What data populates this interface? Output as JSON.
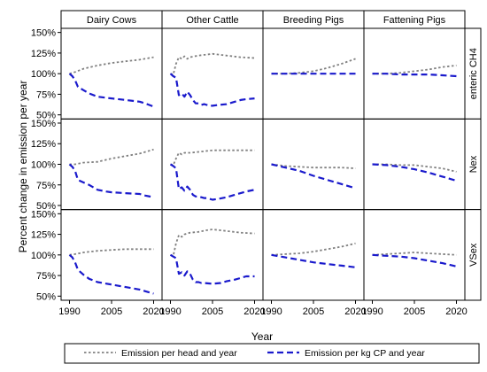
{
  "chart_data": {
    "type": "line",
    "title": "",
    "xlabel": "Year",
    "ylabel": "Percent change in emission per year",
    "column_facets": [
      "Dairy Cows",
      "Other Cattle",
      "Breeding Pigs",
      "Fattening Pigs"
    ],
    "row_facets": [
      "enteric CH4",
      "Nex",
      "VSex"
    ],
    "xlim": [
      1987,
      2023
    ],
    "ylim": [
      45,
      155
    ],
    "x_ticks": [
      1990,
      2005,
      2020
    ],
    "x_tick_labels": [
      "1990",
      "2005",
      "2020"
    ],
    "y_ticks": [
      50,
      75,
      100,
      125,
      150
    ],
    "y_tick_labels": [
      "50%",
      "75%",
      "100%",
      "125%",
      "150%"
    ],
    "legend_position": "bottom",
    "series_styles": [
      {
        "name": "Emission per head and year",
        "color": "#808080",
        "dash": "dotted"
      },
      {
        "name": "Emission per kg CP and year",
        "color": "#1a1acc",
        "dash": "dashed"
      }
    ],
    "panels": [
      {
        "column": "Dairy Cows",
        "row": "enteric CH4",
        "series": [
          {
            "name": "Emission per head and year",
            "x": [
              1990,
              1992,
              1995,
              2000,
              2005,
              2010,
              2015,
              2020
            ],
            "y": [
              100,
              102,
              106,
              110,
              113,
              115,
              117,
              120
            ]
          },
          {
            "name": "Emission per kg CP and year",
            "x": [
              1990,
              1991,
              1992,
              1993,
              1995,
              1997,
              2000,
              2005,
              2010,
              2015,
              2017,
              2020
            ],
            "y": [
              100,
              97,
              92,
              84,
              80,
              76,
              72,
              70,
              68,
              66,
              64,
              60
            ]
          }
        ]
      },
      {
        "column": "Other Cattle",
        "row": "enteric CH4",
        "series": [
          {
            "name": "Emission per head and year",
            "x": [
              1990,
              1991,
              1992,
              1993,
              1994,
              1995,
              1996,
              1997,
              2000,
              2005,
              2010,
              2015,
              2020
            ],
            "y": [
              100,
              99,
              112,
              120,
              118,
              121,
              118,
              120,
              122,
              124,
              122,
              120,
              119
            ]
          },
          {
            "name": "Emission per kg CP and year",
            "x": [
              1990,
              1991,
              1992,
              1993,
              1994,
              1995,
              1996,
              1997,
              1998,
              1999,
              2000,
              2001,
              2002,
              2003,
              2004,
              2005,
              2007,
              2010,
              2013,
              2015,
              2017,
              2020
            ],
            "y": [
              100,
              97,
              95,
              74,
              76,
              72,
              78,
              74,
              68,
              64,
              64,
              62,
              63,
              62,
              61,
              61,
              62,
              63,
              66,
              68,
              69,
              70
            ]
          }
        ]
      },
      {
        "column": "Breeding Pigs",
        "row": "enteric CH4",
        "series": [
          {
            "name": "Emission per head and year",
            "x": [
              1990,
              1995,
              2000,
              2005,
              2010,
              2015,
              2020
            ],
            "y": [
              100,
              100,
              101,
              103,
              107,
              112,
              118
            ]
          },
          {
            "name": "Emission per kg CP and year",
            "x": [
              1990,
              1995,
              2000,
              2005,
              2010,
              2015,
              2020
            ],
            "y": [
              100,
              100,
              100,
              100,
              100,
              100,
              100
            ]
          }
        ]
      },
      {
        "column": "Fattening Pigs",
        "row": "enteric CH4",
        "series": [
          {
            "name": "Emission per head and year",
            "x": [
              1990,
              1995,
              2000,
              2005,
              2010,
              2015,
              2020
            ],
            "y": [
              100,
              100,
              101,
              103,
              105,
              108,
              110
            ]
          },
          {
            "name": "Emission per kg CP and year",
            "x": [
              1990,
              1995,
              2000,
              2005,
              2010,
              2015,
              2020
            ],
            "y": [
              100,
              100,
              99,
              99,
              99,
              98,
              97
            ]
          }
        ]
      },
      {
        "column": "Dairy Cows",
        "row": "Nex",
        "series": [
          {
            "name": "Emission per head and year",
            "x": [
              1990,
              1992,
              1995,
              2000,
              2005,
              2010,
              2015,
              2020
            ],
            "y": [
              100,
              100,
              102,
              103,
              107,
              110,
              113,
              118
            ]
          },
          {
            "name": "Emission per kg CP and year",
            "x": [
              1990,
              1991,
              1992,
              1993,
              1995,
              1997,
              2000,
              2003,
              2005,
              2010,
              2015,
              2017,
              2020
            ],
            "y": [
              100,
              97,
              92,
              81,
              78,
              75,
              69,
              67,
              66,
              65,
              64,
              62,
              60
            ]
          }
        ]
      },
      {
        "column": "Other Cattle",
        "row": "Nex",
        "series": [
          {
            "name": "Emission per head and year",
            "x": [
              1990,
              1991,
              1992,
              1993,
              1994,
              1995,
              1997,
              2000,
              2005,
              2010,
              2015,
              2020
            ],
            "y": [
              100,
              99,
              107,
              114,
              112,
              114,
              114,
              115,
              117,
              117,
              117,
              117
            ]
          },
          {
            "name": "Emission per kg CP and year",
            "x": [
              1990,
              1991,
              1992,
              1993,
              1994,
              1995,
              1996,
              1997,
              1998,
              1999,
              2000,
              2001,
              2002,
              2003,
              2005,
              2007,
              2010,
              2013,
              2015,
              2017,
              2020
            ],
            "y": [
              100,
              98,
              95,
              70,
              72,
              68,
              73,
              69,
              63,
              61,
              61,
              60,
              59,
              59,
              57,
              58,
              60,
              63,
              65,
              67,
              69
            ]
          }
        ]
      },
      {
        "column": "Breeding Pigs",
        "row": "Nex",
        "series": [
          {
            "name": "Emission per head and year",
            "x": [
              1990,
              1995,
              2000,
              2005,
              2010,
              2015,
              2020
            ],
            "y": [
              100,
              98,
              97,
              96,
              96,
              96,
              95
            ]
          },
          {
            "name": "Emission per kg CP and year",
            "x": [
              1990,
              1995,
              2000,
              2005,
              2010,
              2015,
              2020
            ],
            "y": [
              100,
              96,
              92,
              86,
              81,
              76,
              71
            ]
          }
        ]
      },
      {
        "column": "Fattening Pigs",
        "row": "Nex",
        "series": [
          {
            "name": "Emission per head and year",
            "x": [
              1990,
              1995,
              2000,
              2005,
              2010,
              2015,
              2020
            ],
            "y": [
              100,
              100,
              99,
              99,
              97,
              95,
              91
            ]
          },
          {
            "name": "Emission per kg CP and year",
            "x": [
              1990,
              1995,
              2000,
              2005,
              2010,
              2015,
              2020
            ],
            "y": [
              100,
              99,
              97,
              94,
              90,
              85,
              80
            ]
          }
        ]
      },
      {
        "column": "Dairy Cows",
        "row": "VSex",
        "series": [
          {
            "name": "Emission per head and year",
            "x": [
              1990,
              1992,
              1995,
              2000,
              2005,
              2010,
              2015,
              2020
            ],
            "y": [
              100,
              101,
              103,
              105,
              106,
              107,
              107,
              107
            ]
          },
          {
            "name": "Emission per kg CP and year",
            "x": [
              1990,
              1991,
              1992,
              1993,
              1995,
              1997,
              2000,
              2005,
              2010,
              2015,
              2017,
              2020
            ],
            "y": [
              100,
              97,
              91,
              82,
              76,
              71,
              67,
              64,
              61,
              58,
              56,
              53
            ]
          }
        ]
      },
      {
        "column": "Other Cattle",
        "row": "VSex",
        "series": [
          {
            "name": "Emission per head and year",
            "x": [
              1990,
              1991,
              1992,
              1993,
              1994,
              1995,
              1997,
              2000,
              2003,
              2005,
              2010,
              2015,
              2020
            ],
            "y": [
              100,
              99,
              114,
              124,
              122,
              125,
              127,
              128,
              130,
              131,
              129,
              127,
              126
            ]
          },
          {
            "name": "Emission per kg CP and year",
            "x": [
              1990,
              1991,
              1992,
              1993,
              1994,
              1995,
              1996,
              1997,
              1998,
              1999,
              2000,
              2001,
              2002,
              2005,
              2008,
              2010,
              2013,
              2015,
              2017,
              2020
            ],
            "y": [
              100,
              98,
              96,
              77,
              79,
              75,
              80,
              77,
              70,
              67,
              67,
              66,
              66,
              65,
              66,
              68,
              70,
              72,
              74,
              74
            ]
          }
        ]
      },
      {
        "column": "Breeding Pigs",
        "row": "VSex",
        "series": [
          {
            "name": "Emission per head and year",
            "x": [
              1990,
              1995,
              2000,
              2005,
              2010,
              2015,
              2020
            ],
            "y": [
              100,
              101,
              102,
              104,
              107,
              110,
              114
            ]
          },
          {
            "name": "Emission per kg CP and year",
            "x": [
              1990,
              1995,
              2000,
              2005,
              2010,
              2015,
              2020
            ],
            "y": [
              100,
              97,
              94,
              91,
              89,
              87,
              85
            ]
          }
        ]
      },
      {
        "column": "Fattening Pigs",
        "row": "VSex",
        "series": [
          {
            "name": "Emission per head and year",
            "x": [
              1990,
              1995,
              2000,
              2005,
              2010,
              2015,
              2020
            ],
            "y": [
              100,
              101,
              102,
              103,
              102,
              101,
              100
            ]
          },
          {
            "name": "Emission per kg CP and year",
            "x": [
              1990,
              1995,
              2000,
              2005,
              2010,
              2015,
              2020
            ],
            "y": [
              100,
              99,
              98,
              96,
              93,
              90,
              86
            ]
          }
        ]
      }
    ]
  }
}
